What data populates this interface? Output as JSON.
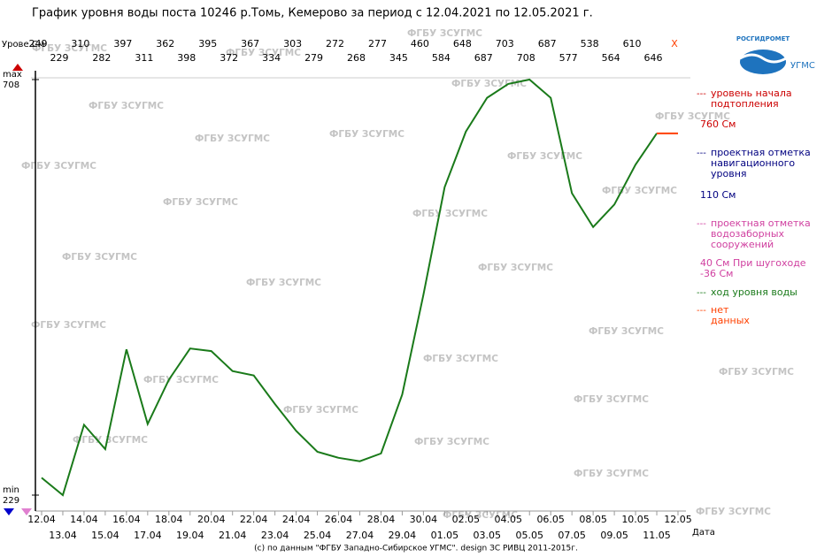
{
  "chart_data": {
    "type": "line",
    "title": "График уровня воды поста 10246 р.Томь, Кемерово за период с 12.04.2021 по 12.05.2021 г.",
    "y_label": "Урове См",
    "x_label": "Дата",
    "footer": "(c) по данным \"ФГБУ Западно-Сибирское УГМС\". design ЗС РИВЦ 2011-2015г.",
    "watermark": "ФГБУ ЗСУГМС",
    "logo_text": "РОСГИДРОМЕТ",
    "logo_subtext": "УГМС",
    "no_data_label": "X",
    "x": [
      "12.04",
      "13.04",
      "14.04",
      "15.04",
      "16.04",
      "17.04",
      "18.04",
      "19.04",
      "20.04",
      "21.04",
      "22.04",
      "23.04",
      "24.04",
      "25.04",
      "26.04",
      "27.04",
      "28.04",
      "29.04",
      "30.04",
      "01.05",
      "02.05",
      "03.05",
      "04.05",
      "05.05",
      "06.05",
      "07.05",
      "08.05",
      "09.05",
      "10.05",
      "11.05",
      "12.05"
    ],
    "series": [
      {
        "color": "#1a7a1a",
        "values": [
          249,
          229,
          310,
          282,
          397,
          311,
          362,
          398,
          395,
          372,
          367,
          334,
          303,
          279,
          272,
          268,
          277,
          345,
          460,
          584,
          648,
          687,
          703,
          708,
          687,
          577,
          538,
          564,
          610,
          646,
          null
        ]
      },
      {
        "color": "#ff4000",
        "values": [
          null,
          null,
          null,
          null,
          null,
          null,
          null,
          null,
          null,
          null,
          null,
          null,
          null,
          null,
          null,
          null,
          null,
          null,
          null,
          null,
          null,
          null,
          null,
          null,
          null,
          null,
          null,
          null,
          null,
          646,
          646
        ]
      }
    ],
    "ylim": [
      229,
      708
    ],
    "yticks": [
      229,
      708
    ],
    "ytick_captions": [
      "min",
      "max"
    ],
    "legend_marker": "---",
    "legend": [
      {
        "color": "#cc0000",
        "lines": [
          "уровень начала",
          "подтопления"
        ],
        "level": [
          "760 См"
        ]
      },
      {
        "color": "#000080",
        "lines": [
          "проектная отметка",
          "навигационного",
          "уровня"
        ],
        "level": [
          "110 См"
        ]
      },
      {
        "color": "#d040a0",
        "lines": [
          "проектная отметка",
          "водозаборных",
          "сооружений"
        ],
        "level": [
          "40 См При шугоходе",
          "-36 См"
        ]
      },
      {
        "color": "#1a7a1a",
        "lines": [
          "ход уровня воды"
        ],
        "level": []
      },
      {
        "color": "#ff4000",
        "lines": [
          "нет",
          "данных"
        ],
        "level": []
      }
    ]
  }
}
